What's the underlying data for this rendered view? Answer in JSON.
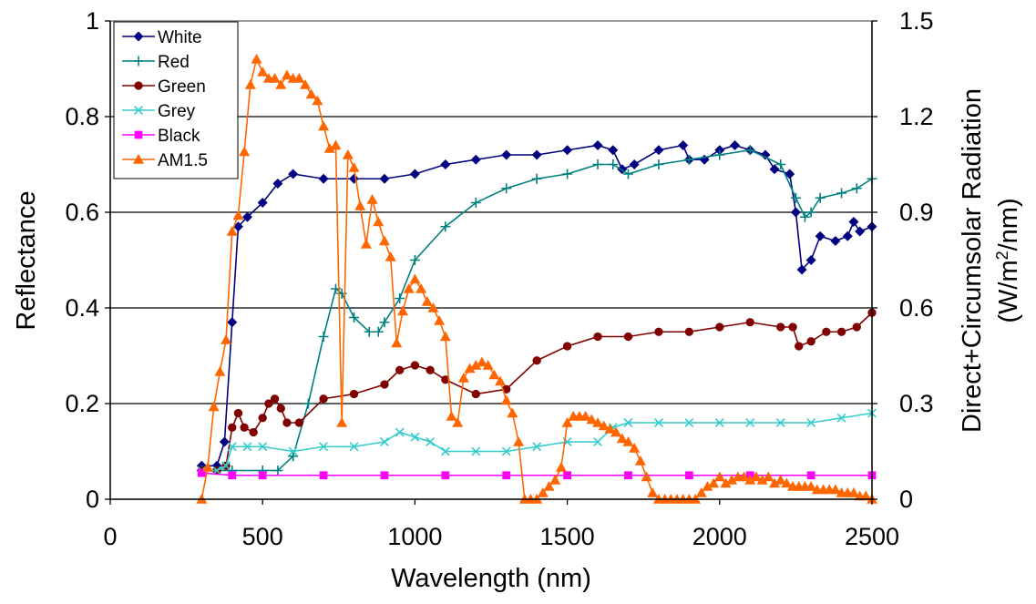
{
  "chart_data": {
    "type": "line",
    "x_label": "Wavelength (nm)",
    "y_label": "Reflectance",
    "y2_label_line1": "Direct+Circumsolar Radiation",
    "y2_label_line2_prefix": "(W/m",
    "y2_label_line2_sup": "2",
    "y2_label_line2_suffix": "/nm)",
    "xlim": [
      0,
      2500
    ],
    "ylim": [
      0,
      1
    ],
    "y2lim": [
      0,
      1.5
    ],
    "x_ticks": [
      "0",
      "500",
      "1000",
      "1500",
      "2000",
      "2500"
    ],
    "y_ticks": [
      "0",
      "0.2",
      "0.4",
      "0.6",
      "0.8",
      "1"
    ],
    "y2_ticks": [
      "0",
      "0.3",
      "0.6",
      "0.9",
      "1.2",
      "1.5"
    ],
    "grid": "horizontal",
    "legend_position": "top-left",
    "series": [
      {
        "name": "White",
        "color": "#000080",
        "marker": "diamond",
        "axis": "left",
        "points": [
          [
            300,
            0.07
          ],
          [
            350,
            0.07
          ],
          [
            375,
            0.12
          ],
          [
            400,
            0.37
          ],
          [
            420,
            0.57
          ],
          [
            450,
            0.59
          ],
          [
            500,
            0.62
          ],
          [
            550,
            0.66
          ],
          [
            600,
            0.68
          ],
          [
            700,
            0.67
          ],
          [
            800,
            0.67
          ],
          [
            900,
            0.67
          ],
          [
            1000,
            0.68
          ],
          [
            1100,
            0.7
          ],
          [
            1200,
            0.71
          ],
          [
            1300,
            0.72
          ],
          [
            1400,
            0.72
          ],
          [
            1500,
            0.73
          ],
          [
            1600,
            0.74
          ],
          [
            1650,
            0.73
          ],
          [
            1680,
            0.69
          ],
          [
            1720,
            0.7
          ],
          [
            1800,
            0.73
          ],
          [
            1880,
            0.74
          ],
          [
            1900,
            0.71
          ],
          [
            1950,
            0.71
          ],
          [
            2000,
            0.73
          ],
          [
            2050,
            0.74
          ],
          [
            2100,
            0.73
          ],
          [
            2150,
            0.72
          ],
          [
            2180,
            0.69
          ],
          [
            2230,
            0.68
          ],
          [
            2250,
            0.6
          ],
          [
            2270,
            0.48
          ],
          [
            2300,
            0.5
          ],
          [
            2330,
            0.55
          ],
          [
            2380,
            0.54
          ],
          [
            2420,
            0.55
          ],
          [
            2440,
            0.58
          ],
          [
            2460,
            0.56
          ],
          [
            2500,
            0.57
          ]
        ]
      },
      {
        "name": "Red",
        "color": "#008080",
        "marker": "plus",
        "axis": "left",
        "points": [
          [
            300,
            0.06
          ],
          [
            400,
            0.06
          ],
          [
            500,
            0.06
          ],
          [
            550,
            0.06
          ],
          [
            600,
            0.09
          ],
          [
            650,
            0.2
          ],
          [
            700,
            0.34
          ],
          [
            740,
            0.44
          ],
          [
            760,
            0.43
          ],
          [
            800,
            0.38
          ],
          [
            850,
            0.35
          ],
          [
            880,
            0.35
          ],
          [
            900,
            0.37
          ],
          [
            950,
            0.42
          ],
          [
            1000,
            0.5
          ],
          [
            1100,
            0.57
          ],
          [
            1200,
            0.62
          ],
          [
            1300,
            0.65
          ],
          [
            1400,
            0.67
          ],
          [
            1500,
            0.68
          ],
          [
            1600,
            0.7
          ],
          [
            1650,
            0.7
          ],
          [
            1700,
            0.68
          ],
          [
            1800,
            0.7
          ],
          [
            1900,
            0.71
          ],
          [
            2000,
            0.72
          ],
          [
            2100,
            0.73
          ],
          [
            2200,
            0.7
          ],
          [
            2250,
            0.63
          ],
          [
            2280,
            0.59
          ],
          [
            2300,
            0.6
          ],
          [
            2330,
            0.63
          ],
          [
            2400,
            0.64
          ],
          [
            2450,
            0.65
          ],
          [
            2500,
            0.67
          ]
        ]
      },
      {
        "name": "Green",
        "color": "#800000",
        "marker": "circle",
        "axis": "left",
        "points": [
          [
            300,
            0.06
          ],
          [
            350,
            0.06
          ],
          [
            380,
            0.07
          ],
          [
            400,
            0.15
          ],
          [
            420,
            0.18
          ],
          [
            440,
            0.15
          ],
          [
            470,
            0.14
          ],
          [
            500,
            0.17
          ],
          [
            520,
            0.2
          ],
          [
            540,
            0.21
          ],
          [
            560,
            0.19
          ],
          [
            580,
            0.16
          ],
          [
            620,
            0.16
          ],
          [
            700,
            0.21
          ],
          [
            800,
            0.22
          ],
          [
            900,
            0.24
          ],
          [
            950,
            0.27
          ],
          [
            1000,
            0.28
          ],
          [
            1050,
            0.27
          ],
          [
            1100,
            0.25
          ],
          [
            1200,
            0.22
          ],
          [
            1300,
            0.23
          ],
          [
            1400,
            0.29
          ],
          [
            1500,
            0.32
          ],
          [
            1600,
            0.34
          ],
          [
            1700,
            0.34
          ],
          [
            1800,
            0.35
          ],
          [
            1900,
            0.35
          ],
          [
            2000,
            0.36
          ],
          [
            2100,
            0.37
          ],
          [
            2200,
            0.36
          ],
          [
            2240,
            0.36
          ],
          [
            2260,
            0.32
          ],
          [
            2300,
            0.33
          ],
          [
            2350,
            0.35
          ],
          [
            2400,
            0.35
          ],
          [
            2450,
            0.36
          ],
          [
            2500,
            0.39
          ]
        ]
      },
      {
        "name": "Grey",
        "color": "#33CCCC",
        "marker": "x",
        "axis": "left",
        "points": [
          [
            300,
            0.06
          ],
          [
            350,
            0.06
          ],
          [
            380,
            0.07
          ],
          [
            400,
            0.11
          ],
          [
            450,
            0.11
          ],
          [
            500,
            0.11
          ],
          [
            600,
            0.1
          ],
          [
            700,
            0.11
          ],
          [
            800,
            0.11
          ],
          [
            900,
            0.12
          ],
          [
            950,
            0.14
          ],
          [
            1000,
            0.13
          ],
          [
            1050,
            0.12
          ],
          [
            1100,
            0.1
          ],
          [
            1200,
            0.1
          ],
          [
            1300,
            0.1
          ],
          [
            1400,
            0.11
          ],
          [
            1500,
            0.12
          ],
          [
            1600,
            0.12
          ],
          [
            1650,
            0.15
          ],
          [
            1700,
            0.16
          ],
          [
            1800,
            0.16
          ],
          [
            1900,
            0.16
          ],
          [
            2000,
            0.16
          ],
          [
            2100,
            0.16
          ],
          [
            2200,
            0.16
          ],
          [
            2300,
            0.16
          ],
          [
            2400,
            0.17
          ],
          [
            2500,
            0.18
          ]
        ]
      },
      {
        "name": "Black",
        "color": "#FF00FF",
        "marker": "square",
        "axis": "left",
        "points": [
          [
            300,
            0.055
          ],
          [
            400,
            0.05
          ],
          [
            500,
            0.05
          ],
          [
            700,
            0.05
          ],
          [
            900,
            0.05
          ],
          [
            1100,
            0.05
          ],
          [
            1300,
            0.05
          ],
          [
            1500,
            0.05
          ],
          [
            1700,
            0.05
          ],
          [
            1900,
            0.05
          ],
          [
            2100,
            0.05
          ],
          [
            2300,
            0.05
          ],
          [
            2500,
            0.05
          ]
        ]
      },
      {
        "name": "AM1.5",
        "color": "#FF6600",
        "marker": "triangle",
        "axis": "right",
        "points": [
          [
            300,
            0.0
          ],
          [
            320,
            0.1
          ],
          [
            340,
            0.29
          ],
          [
            360,
            0.4
          ],
          [
            380,
            0.5
          ],
          [
            400,
            0.84
          ],
          [
            420,
            0.89
          ],
          [
            440,
            1.09
          ],
          [
            460,
            1.3
          ],
          [
            480,
            1.38
          ],
          [
            500,
            1.34
          ],
          [
            520,
            1.32
          ],
          [
            540,
            1.32
          ],
          [
            560,
            1.3
          ],
          [
            580,
            1.33
          ],
          [
            600,
            1.32
          ],
          [
            620,
            1.32
          ],
          [
            640,
            1.3
          ],
          [
            660,
            1.27
          ],
          [
            680,
            1.25
          ],
          [
            700,
            1.17
          ],
          [
            720,
            1.1
          ],
          [
            740,
            1.11
          ],
          [
            760,
            0.24
          ],
          [
            780,
            1.08
          ],
          [
            800,
            1.04
          ],
          [
            820,
            0.92
          ],
          [
            840,
            0.8
          ],
          [
            860,
            0.94
          ],
          [
            880,
            0.87
          ],
          [
            900,
            0.81
          ],
          [
            920,
            0.76
          ],
          [
            940,
            0.49
          ],
          [
            960,
            0.59
          ],
          [
            980,
            0.66
          ],
          [
            1000,
            0.69
          ],
          [
            1020,
            0.66
          ],
          [
            1040,
            0.62
          ],
          [
            1060,
            0.6
          ],
          [
            1080,
            0.56
          ],
          [
            1100,
            0.51
          ],
          [
            1120,
            0.26
          ],
          [
            1140,
            0.24
          ],
          [
            1160,
            0.38
          ],
          [
            1180,
            0.41
          ],
          [
            1200,
            0.42
          ],
          [
            1220,
            0.43
          ],
          [
            1240,
            0.42
          ],
          [
            1260,
            0.39
          ],
          [
            1280,
            0.37
          ],
          [
            1300,
            0.31
          ],
          [
            1320,
            0.27
          ],
          [
            1340,
            0.18
          ],
          [
            1360,
            0.0
          ],
          [
            1380,
            0.0
          ],
          [
            1400,
            0.0
          ],
          [
            1420,
            0.02
          ],
          [
            1440,
            0.04
          ],
          [
            1460,
            0.06
          ],
          [
            1480,
            0.1
          ],
          [
            1500,
            0.24
          ],
          [
            1520,
            0.26
          ],
          [
            1540,
            0.26
          ],
          [
            1560,
            0.26
          ],
          [
            1580,
            0.25
          ],
          [
            1600,
            0.24
          ],
          [
            1620,
            0.23
          ],
          [
            1640,
            0.22
          ],
          [
            1660,
            0.21
          ],
          [
            1680,
            0.19
          ],
          [
            1700,
            0.18
          ],
          [
            1720,
            0.16
          ],
          [
            1740,
            0.12
          ],
          [
            1760,
            0.07
          ],
          [
            1780,
            0.02
          ],
          [
            1800,
            0.0
          ],
          [
            1820,
            0.0
          ],
          [
            1840,
            0.0
          ],
          [
            1860,
            0.0
          ],
          [
            1880,
            0.0
          ],
          [
            1900,
            0.0
          ],
          [
            1920,
            0.0
          ],
          [
            1940,
            0.02
          ],
          [
            1960,
            0.04
          ],
          [
            1980,
            0.05
          ],
          [
            2000,
            0.07
          ],
          [
            2020,
            0.05
          ],
          [
            2040,
            0.06
          ],
          [
            2060,
            0.07
          ],
          [
            2080,
            0.07
          ],
          [
            2100,
            0.06
          ],
          [
            2120,
            0.07
          ],
          [
            2140,
            0.06
          ],
          [
            2160,
            0.07
          ],
          [
            2180,
            0.05
          ],
          [
            2200,
            0.06
          ],
          [
            2220,
            0.05
          ],
          [
            2240,
            0.04
          ],
          [
            2260,
            0.04
          ],
          [
            2280,
            0.04
          ],
          [
            2300,
            0.04
          ],
          [
            2320,
            0.03
          ],
          [
            2340,
            0.03
          ],
          [
            2360,
            0.03
          ],
          [
            2380,
            0.03
          ],
          [
            2400,
            0.02
          ],
          [
            2420,
            0.02
          ],
          [
            2440,
            0.02
          ],
          [
            2460,
            0.01
          ],
          [
            2480,
            0.01
          ],
          [
            2500,
            0.0
          ]
        ]
      }
    ]
  }
}
